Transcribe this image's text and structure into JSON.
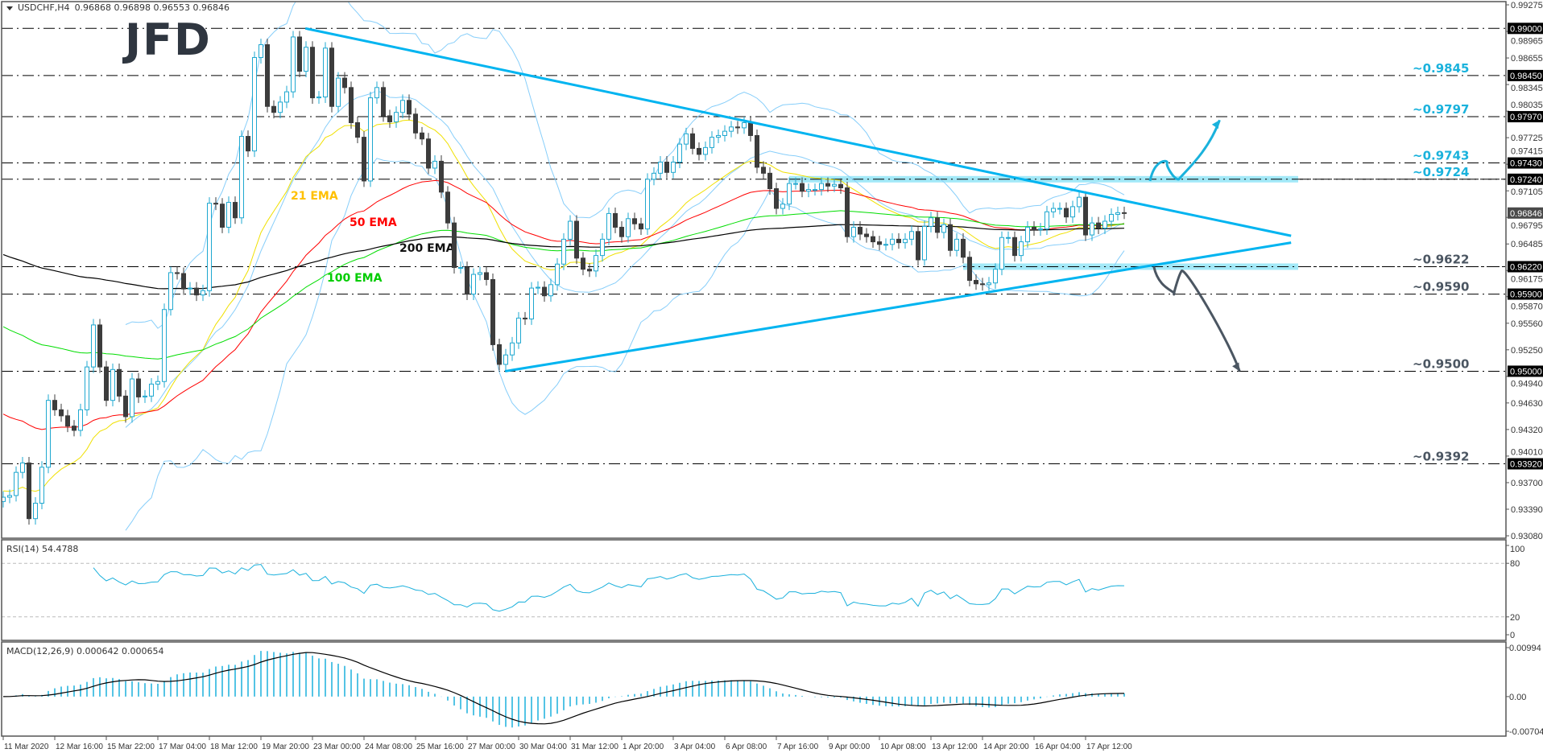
{
  "header": {
    "symbol": "USDCHF,H4",
    "ohlc": "0.96868 0.96898 0.96553 0.96846"
  },
  "logo": "JFD",
  "chart_data": {
    "type": "candlestick",
    "ylim": [
      0.9308,
      0.99275
    ],
    "y_ticks": [
      "0.99275",
      "0.98965",
      "0.98655",
      "0.98345",
      "0.98035",
      "0.97725",
      "0.97415",
      "0.97105",
      "0.96795",
      "0.96485",
      "0.96175",
      "0.95870",
      "0.95560",
      "0.95250",
      "0.94940",
      "0.94630",
      "0.94320",
      "0.94010",
      "0.93700",
      "0.93390",
      "0.93080"
    ],
    "x_labels": [
      {
        "bar": 0,
        "label": "11 Mar 2020"
      },
      {
        "bar": 8,
        "label": "12 Mar 16:00"
      },
      {
        "bar": 16,
        "label": "15 Mar 22:00"
      },
      {
        "bar": 24,
        "label": "17 Mar 04:00"
      },
      {
        "bar": 32,
        "label": "18 Mar 12:00"
      },
      {
        "bar": 40,
        "label": "19 Mar 20:00"
      },
      {
        "bar": 48,
        "label": "23 Mar 00:00"
      },
      {
        "bar": 56,
        "label": "24 Mar 08:00"
      },
      {
        "bar": 64,
        "label": "25 Mar 16:00"
      },
      {
        "bar": 72,
        "label": "27 Mar 00:00"
      },
      {
        "bar": 80,
        "label": "30 Mar 04:00"
      },
      {
        "bar": 88,
        "label": "31 Mar 12:00"
      },
      {
        "bar": 96,
        "label": "1 Apr 20:00"
      },
      {
        "bar": 104,
        "label": "3 Apr 04:00"
      },
      {
        "bar": 112,
        "label": "6 Apr 08:00"
      },
      {
        "bar": 120,
        "label": "7 Apr 16:00"
      },
      {
        "bar": 128,
        "label": "9 Apr 00:00"
      },
      {
        "bar": 136,
        "label": "10 Apr 08:00"
      },
      {
        "bar": 144,
        "label": "13 Apr 12:00"
      },
      {
        "bar": 152,
        "label": "14 Apr 20:00"
      },
      {
        "bar": 160,
        "label": "16 Apr 04:00"
      },
      {
        "bar": 168,
        "label": "17 Apr 12:00"
      }
    ],
    "close": [
      0.9353,
      0.9355,
      0.9382,
      0.9393,
      0.9328,
      0.9346,
      0.9388,
      0.9466,
      0.9455,
      0.9448,
      0.9436,
      0.9431,
      0.9455,
      0.9505,
      0.9554,
      0.9505,
      0.9466,
      0.9502,
      0.9471,
      0.9447,
      0.9491,
      0.947,
      0.9471,
      0.9485,
      0.9488,
      0.9572,
      0.9615,
      0.9614,
      0.9596,
      0.9597,
      0.9589,
      0.9594,
      0.9696,
      0.9695,
      0.9668,
      0.9697,
      0.9679,
      0.9774,
      0.9757,
      0.9866,
      0.9881,
      0.9809,
      0.9802,
      0.9814,
      0.9826,
      0.989,
      0.985,
      0.9878,
      0.9819,
      0.982,
      0.9877,
      0.9809,
      0.9842,
      0.9831,
      0.979,
      0.9773,
      0.9722,
      0.9819,
      0.9831,
      0.9798,
      0.9791,
      0.9802,
      0.9816,
      0.98,
      0.9778,
      0.9771,
      0.9737,
      0.9745,
      0.9709,
      0.9673,
      0.9621,
      0.9621,
      0.959,
      0.9613,
      0.9615,
      0.9607,
      0.9531,
      0.9508,
      0.9519,
      0.9533,
      0.9562,
      0.9561,
      0.9597,
      0.9598,
      0.9588,
      0.9601,
      0.9625,
      0.9654,
      0.9675,
      0.9632,
      0.9619,
      0.9617,
      0.9635,
      0.9654,
      0.9684,
      0.9668,
      0.9657,
      0.9678,
      0.9672,
      0.9666,
      0.9724,
      0.9731,
      0.9744,
      0.9732,
      0.9744,
      0.9765,
      0.9777,
      0.976,
      0.9753,
      0.9761,
      0.9773,
      0.9775,
      0.978,
      0.9785,
      0.9784,
      0.979,
      0.9775,
      0.9738,
      0.9731,
      0.9713,
      0.969,
      0.9695,
      0.9719,
      0.9719,
      0.971,
      0.9712,
      0.9712,
      0.9719,
      0.9716,
      0.9718,
      0.9714,
      0.9657,
      0.9668,
      0.966,
      0.9657,
      0.9651,
      0.9648,
      0.9648,
      0.9654,
      0.965,
      0.9654,
      0.9663,
      0.963,
      0.9669,
      0.9679,
      0.9662,
      0.9671,
      0.9641,
      0.9654,
      0.9633,
      0.9606,
      0.9602,
      0.9601,
      0.9603,
      0.9619,
      0.9656,
      0.9656,
      0.9635,
      0.9651,
      0.9668,
      0.9665,
      0.9666,
      0.9686,
      0.969,
      0.969,
      0.968,
      0.9692,
      0.9703,
      0.9659,
      0.9673,
      0.9667,
      0.9675,
      0.9683,
      0.9685,
      0.96846
    ],
    "last_price": "0.96846",
    "horizontal_levels": [
      {
        "price": 0.99,
        "label": "0.99000"
      },
      {
        "price": 0.9845,
        "label": "0.98450"
      },
      {
        "price": 0.9797,
        "label": "0.97970"
      },
      {
        "price": 0.9743,
        "label": "0.97430"
      },
      {
        "price": 0.9724,
        "label": "0.97240"
      },
      {
        "price": 0.9622,
        "label": "0.96220"
      },
      {
        "price": 0.959,
        "label": "0.95900"
      },
      {
        "price": 0.95,
        "label": "0.95000"
      },
      {
        "price": 0.9392,
        "label": "0.93920"
      }
    ],
    "level_annotations": [
      {
        "price": 0.9845,
        "text": "~0.9845",
        "color": "#1ab2dc"
      },
      {
        "price": 0.9797,
        "text": "~0.9797",
        "color": "#1ab2dc"
      },
      {
        "price": 0.9743,
        "text": "~0.9743",
        "color": "#1ab2dc"
      },
      {
        "price": 0.9724,
        "text": "~0.9724",
        "color": "#1ab2dc"
      },
      {
        "price": 0.9622,
        "text": "~0.9622",
        "color": "#4b5662"
      },
      {
        "price": 0.959,
        "text": "~0.9590",
        "color": "#4b5662"
      },
      {
        "price": 0.95,
        "text": "~0.9500",
        "color": "#4b5662"
      },
      {
        "price": 0.9392,
        "text": "~0.9392",
        "color": "#4b5662"
      }
    ],
    "trendlines": [
      {
        "from": {
          "bar": 46.9,
          "price": 0.99
        },
        "to": {
          "bar": 199.9,
          "price": 0.9658
        },
        "color": "#00b4f0"
      },
      {
        "from": {
          "bar": 77.9,
          "price": 0.95
        },
        "to": {
          "bar": 199.9,
          "price": 0.965
        },
        "color": "#00b4f0"
      }
    ],
    "zones": [
      {
        "price": 0.9724,
        "from_bar": 122,
        "to_bar": 201,
        "color": "#9ee8f8"
      },
      {
        "price": 0.9622,
        "from_bar": 149,
        "to_bar": 201,
        "color": "#9ee8f8"
      }
    ],
    "scenario_arrows": [
      {
        "direction": "up",
        "color": "#1ab2dc",
        "points": [
          [
            178,
            0.9722
          ],
          [
            180.4,
            0.9743
          ],
          [
            182.6,
            0.9725
          ],
          [
            188.8,
            0.9793
          ]
        ]
      },
      {
        "direction": "down",
        "color": "#4b5662",
        "points": [
          [
            178.6,
            0.9622
          ],
          [
            181.5,
            0.959
          ],
          [
            182.9,
            0.9617
          ],
          [
            191.9,
            0.95
          ]
        ]
      }
    ],
    "colors": {
      "bull": "#1fa8d0",
      "bear": "#3c3c3c",
      "current_price_bg": "#4a4a4a"
    },
    "indicators": {
      "ema": [
        {
          "period": 21,
          "label": "21 EMA",
          "line_color": "#f0e000",
          "label_color": "#ffc000",
          "start": 0.9361
        },
        {
          "period": 50,
          "label": "50 EMA",
          "line_color": "#ff0000",
          "label_color": "#ff0000",
          "start": 0.9454
        },
        {
          "period": 100,
          "label": "100 EMA",
          "line_color": "#00dd00",
          "label_color": "#00cc00",
          "start": 0.9556
        },
        {
          "period": 200,
          "label": "200 EMA",
          "line_color": "#000000",
          "label_color": "#111111",
          "start": 0.9639
        }
      ],
      "bollinger": {
        "period": 20,
        "deviation": 2,
        "color": "#87cefa"
      },
      "rsi": {
        "title": "RSI(14) 54.4788",
        "period": 14,
        "levels": [
          80,
          20
        ],
        "axis_labels": [
          "100",
          "80",
          "20",
          "0"
        ],
        "color": "#1ab0dc"
      },
      "macd": {
        "title": "MACD(12,26,9) 0.000642 0.000654",
        "fast": 12,
        "slow": 26,
        "signal": 9,
        "axis_labels": [
          "0.00994",
          "0.00",
          "-0.007041"
        ],
        "ylim": [
          -0.007041,
          0.00994
        ],
        "hist_color": "#1ab0dc",
        "signal_color": "#000000"
      }
    }
  }
}
